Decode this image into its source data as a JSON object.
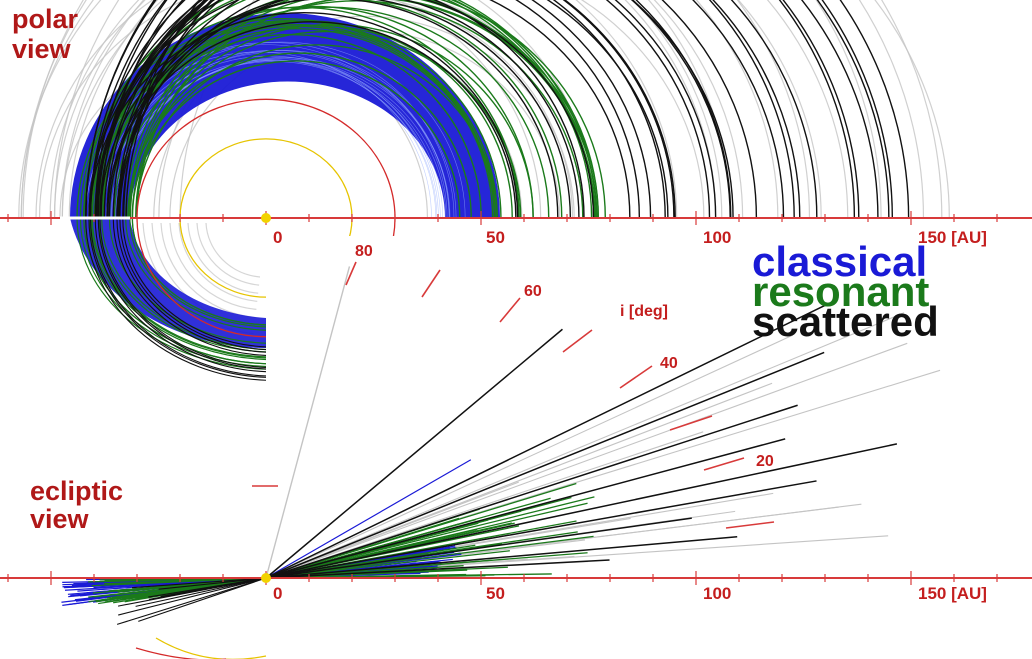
{
  "labels": {
    "polar_view": [
      "polar",
      "view"
    ],
    "ecliptic_view": [
      "ecliptic",
      "view"
    ]
  },
  "polar_axis": {
    "ticks": [
      "0",
      "50",
      "100",
      "150 [AU]"
    ]
  },
  "ecliptic_axis": {
    "ticks": [
      "0",
      "50",
      "100",
      "150 [AU]"
    ]
  },
  "inclination": {
    "title": "i [deg]",
    "ticks": [
      "80",
      "60",
      "40",
      "20"
    ]
  },
  "legend": [
    {
      "name": "classical",
      "color": "#1a1ad6"
    },
    {
      "name": "resonant",
      "color": "#1b7a1b"
    },
    {
      "name": "scattered",
      "color": "#111111"
    }
  ],
  "colors": {
    "classical": "#1a1ad6",
    "resonant": "#1b7a1b",
    "scattered": "#111111",
    "other": "#c4c4c4",
    "planet_orbit_a": "#d42a2a",
    "planet_orbit_b": "#e6c400",
    "axis": "#d83a3a",
    "sun": "#f2d200"
  }
}
